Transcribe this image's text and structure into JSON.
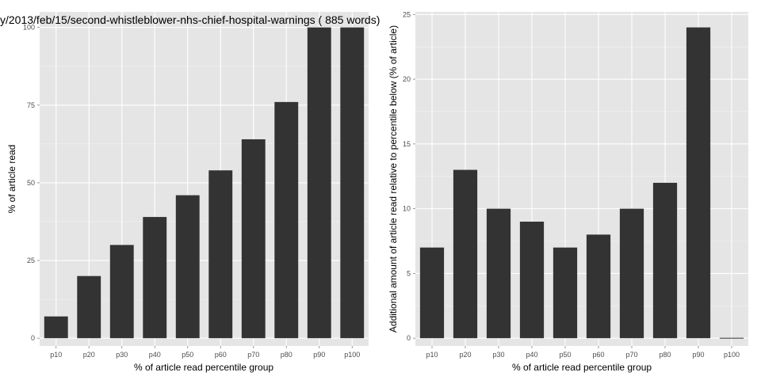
{
  "chart_data": [
    {
      "type": "bar",
      "title": "y/2013/feb/15/second-whistleblower-nhs-chief-hospital-warnings ( 885 words)",
      "xlabel": "% of article read percentile group",
      "ylabel": "% of article read",
      "categories": [
        "p10",
        "p20",
        "p30",
        "p40",
        "p50",
        "p60",
        "p70",
        "p80",
        "p90",
        "p100"
      ],
      "values": [
        7,
        20,
        30,
        39,
        46,
        54,
        64,
        76,
        100,
        100
      ],
      "ylim": [
        -2.5,
        105
      ],
      "yticks": [
        0,
        25,
        50,
        75,
        100
      ],
      "grid": true
    },
    {
      "type": "bar",
      "title": "",
      "xlabel": "% of article read percentile group",
      "ylabel": "Additional amount of article read relative to percentile below (% of article)",
      "categories": [
        "p10",
        "p20",
        "p30",
        "p40",
        "p50",
        "p60",
        "p70",
        "p80",
        "p90",
        "p100"
      ],
      "values": [
        7,
        13,
        10,
        9,
        7,
        8,
        10,
        12,
        24,
        0
      ],
      "ylim": [
        -0.6,
        25.2
      ],
      "yticks": [
        0,
        5,
        10,
        15,
        20,
        25
      ],
      "grid": true
    }
  ],
  "colors": {
    "panel_bg": "#e5e5e5",
    "grid_major": "#ffffff",
    "grid_minor": "#f2f2f2",
    "bar": "#333333"
  }
}
